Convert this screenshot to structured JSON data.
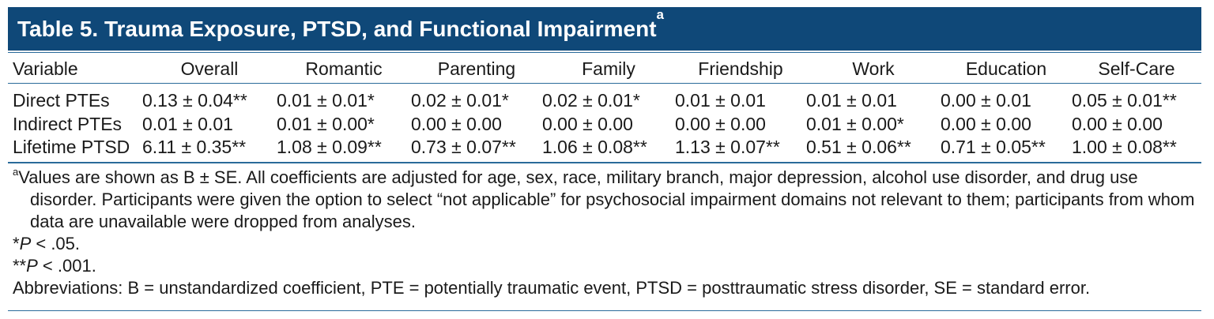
{
  "title": {
    "text": "Table 5. Trauma Exposure, PTSD, and Functional Impairment",
    "superscript": "a"
  },
  "table": {
    "columns": [
      "Variable",
      "Overall",
      "Romantic",
      "Parenting",
      "Family",
      "Friendship",
      "Work",
      "Education",
      "Self-Care"
    ],
    "rows": [
      {
        "label": "Direct PTEs",
        "cells": [
          "0.13 ± 0.04**",
          "0.01 ± 0.01*",
          "0.02 ± 0.01*",
          "0.02 ± 0.01*",
          "0.01 ± 0.01",
          "0.01 ± 0.01",
          "0.00 ± 0.01",
          "0.05 ± 0.01**"
        ]
      },
      {
        "label": "Indirect PTEs",
        "cells": [
          "0.01 ± 0.01",
          "0.01 ± 0.00*",
          "0.00 ± 0.00",
          "0.00 ± 0.00",
          "0.00 ± 0.00",
          "0.01 ± 0.00*",
          "0.00 ± 0.00",
          "0.00 ± 0.00"
        ]
      },
      {
        "label": "Lifetime PTSD",
        "cells": [
          "6.11 ± 0.35**",
          "1.08 ± 0.09**",
          "0.73 ± 0.07**",
          "1.06 ± 0.08**",
          "1.13 ± 0.07**",
          "0.51 ± 0.06**",
          "0.71 ± 0.05**",
          "1.00 ± 0.08**"
        ]
      }
    ]
  },
  "footnotes": {
    "a_marker": "a",
    "a_text": "Values are shown as B ± SE. All coefficients are adjusted for age, sex, race, military branch, major depression, alcohol use disorder, and drug use disorder. Participants were given the option to select “not applicable” for psychosocial impairment domains not relevant to them; participants from whom data are unavailable were dropped from analyses.",
    "p1_stars": "*",
    "p1_p": "P",
    "p1_rest": " < .05.",
    "p2_stars": "**",
    "p2_p": "P",
    "p2_rest": " < .001.",
    "abbreviations": "Abbreviations: B = unstandardized coefficient, PTE = potentially traumatic event, PTSD = posttraumatic stress disorder, SE = standard error."
  },
  "colors": {
    "title_bar_bg": "#0f4878",
    "title_text": "#ffffff",
    "rule": "#2a6b9a"
  }
}
